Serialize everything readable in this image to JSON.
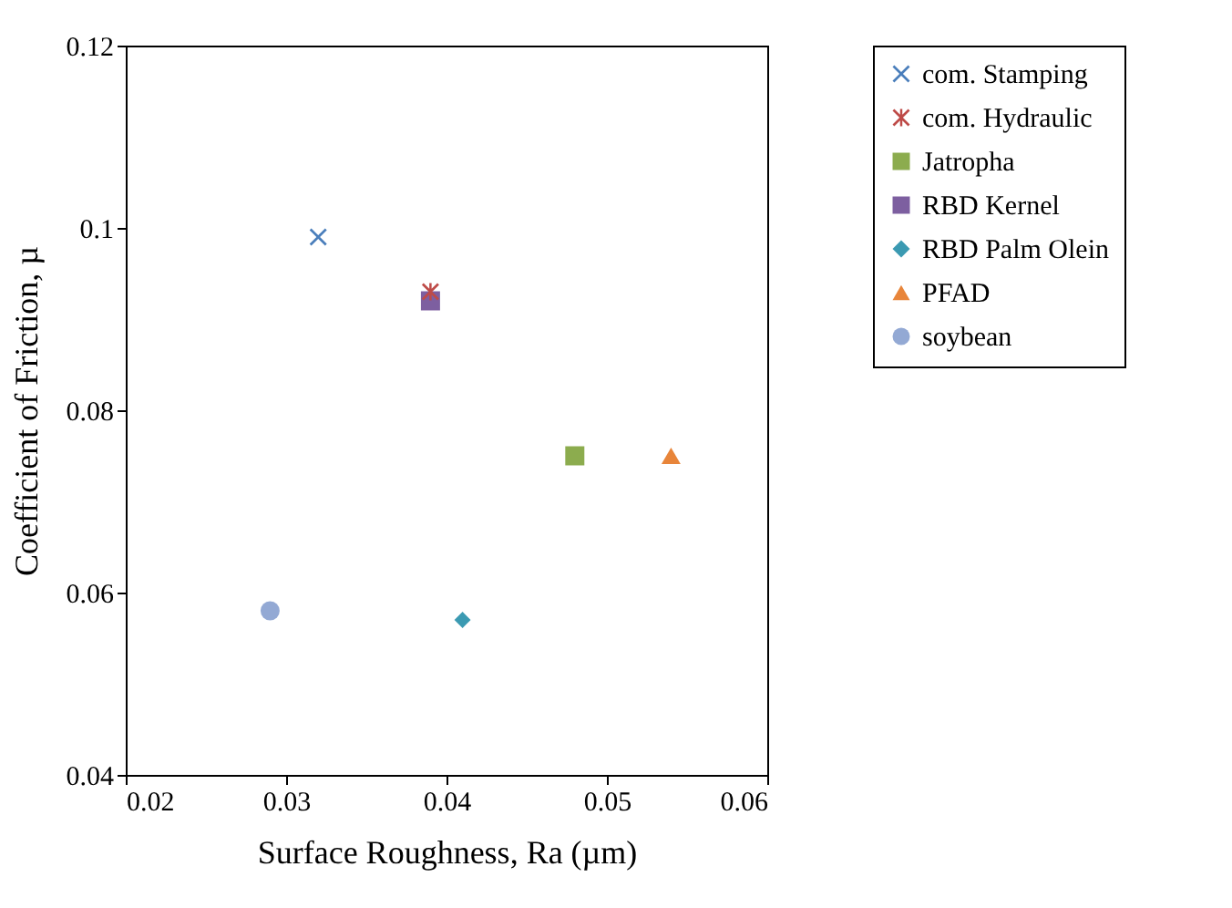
{
  "chart_data": {
    "type": "scatter",
    "xlabel": "Surface Roughness, Ra (µm)",
    "ylabel": "Coefficient of Friction, µ",
    "xlim": [
      0.02,
      0.06
    ],
    "xticks": [
      0.02,
      0.03,
      0.04,
      0.05,
      0.06
    ],
    "ylim": [
      0.04,
      0.12
    ],
    "yticks": [
      0.04,
      0.06,
      0.08,
      0.1,
      0.12
    ],
    "grid": false,
    "legend": "right",
    "series": [
      {
        "name": "com. Stamping",
        "color": "#4a7ebb",
        "marker": "cross",
        "x": [
          0.032
        ],
        "values": [
          0.099
        ]
      },
      {
        "name": "com. Hydraulic",
        "color": "#be4b48",
        "marker": "star",
        "x": [
          0.039
        ],
        "values": [
          0.093
        ]
      },
      {
        "name": "Jatropha",
        "color": "#8cac4e",
        "marker": "square",
        "x": [
          0.048
        ],
        "values": [
          0.075
        ]
      },
      {
        "name": "RBD Kernel",
        "color": "#7d5fa0",
        "marker": "square",
        "x": [
          0.039
        ],
        "values": [
          0.092
        ]
      },
      {
        "name": "RBD Palm Olein",
        "color": "#3b9ab2",
        "marker": "diamond",
        "x": [
          0.041
        ],
        "values": [
          0.057
        ]
      },
      {
        "name": "PFAD",
        "color": "#e8853a",
        "marker": "triangle",
        "x": [
          0.054
        ],
        "values": [
          0.075
        ]
      },
      {
        "name": "soybean",
        "color": "#93a9d4",
        "marker": "circle",
        "x": [
          0.029
        ],
        "values": [
          0.058
        ]
      }
    ]
  }
}
